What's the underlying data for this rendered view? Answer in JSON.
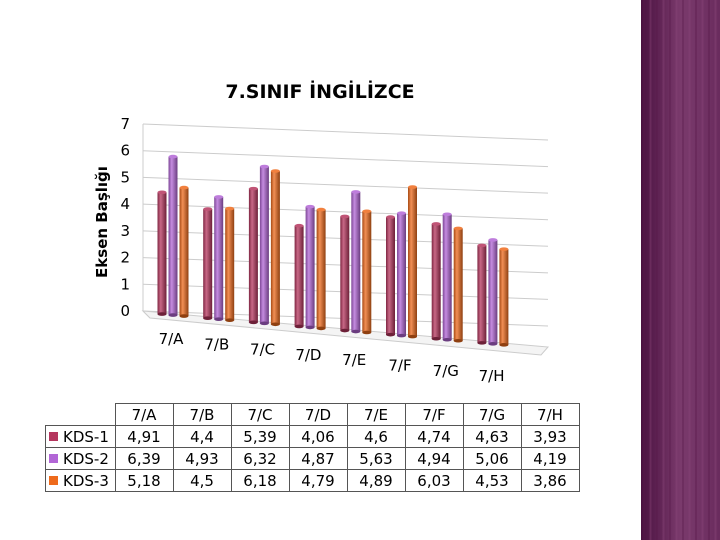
{
  "theme": {
    "bar_colors": [
      "#B5365E",
      "#B266D6",
      "#EE6A1C"
    ],
    "side_panel_colors": [
      "#5A1A4A",
      "#8E4A7E"
    ]
  },
  "chart_data": {
    "type": "bar",
    "title": "7.SINIF İNGİLİZCE",
    "xlabel": "",
    "ylabel": "Eksen Başlığı",
    "ylim": [
      0,
      7
    ],
    "yticks": [
      "0",
      "1",
      "2",
      "3",
      "4",
      "5",
      "6",
      "7"
    ],
    "categories": [
      "7/A",
      "7/B",
      "7/C",
      "7/D",
      "7/E",
      "7/F",
      "7/G",
      "7/H"
    ],
    "grid": true,
    "legend": "table",
    "series": [
      {
        "name": "KDS-1",
        "values": [
          4.91,
          4.4,
          5.39,
          4.06,
          4.6,
          4.74,
          4.63,
          3.93
        ],
        "labels": [
          "4,91",
          "4,4",
          "5,39",
          "4,06",
          "4,6",
          "4,74",
          "4,63",
          "3,93"
        ]
      },
      {
        "name": "KDS-2",
        "values": [
          6.39,
          4.93,
          6.32,
          4.87,
          5.63,
          4.94,
          5.06,
          4.19
        ],
        "labels": [
          "6,39",
          "4,93",
          "6,32",
          "4,87",
          "5,63",
          "4,94",
          "5,06",
          "4,19"
        ]
      },
      {
        "name": "KDS-3",
        "values": [
          5.18,
          4.5,
          6.18,
          4.79,
          4.89,
          6.03,
          4.53,
          3.86
        ],
        "labels": [
          "5,18",
          "4,5",
          "6,18",
          "4,79",
          "4,89",
          "6,03",
          "4,53",
          "3,86"
        ]
      }
    ]
  }
}
